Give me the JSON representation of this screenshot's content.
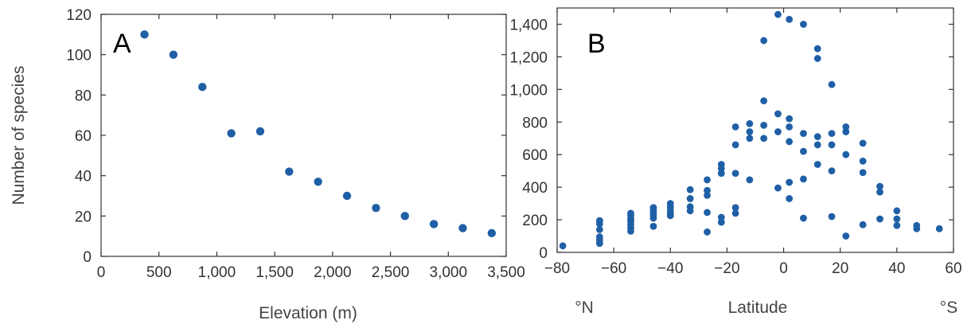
{
  "accent_color": "#1f5fa6",
  "chart_data": [
    {
      "type": "scatter",
      "panel_label": "A",
      "xlabel": "Elevation (m)",
      "ylabel": "Number of species",
      "xlim": [
        0,
        3500
      ],
      "ylim": [
        0,
        120
      ],
      "xticks": [
        0,
        500,
        1000,
        1500,
        2000,
        2500,
        3000,
        3500
      ],
      "xtick_labels": [
        "0",
        "500",
        "1,000",
        "1,500",
        "2,000",
        "2,500",
        "3,000",
        "3,500"
      ],
      "yticks": [
        0,
        20,
        40,
        60,
        80,
        100,
        120
      ],
      "ytick_labels": [
        "0",
        "20",
        "40",
        "60",
        "80",
        "100",
        "120"
      ],
      "grid": false,
      "points": [
        [
          375,
          110
        ],
        [
          625,
          100
        ],
        [
          875,
          84
        ],
        [
          1125,
          61
        ],
        [
          1375,
          62
        ],
        [
          1625,
          42
        ],
        [
          1875,
          37
        ],
        [
          2125,
          30
        ],
        [
          2375,
          24
        ],
        [
          2625,
          20
        ],
        [
          2875,
          16
        ],
        [
          3125,
          14
        ],
        [
          3375,
          11.5
        ]
      ]
    },
    {
      "type": "scatter",
      "panel_label": "B",
      "xlabel": "Latitude",
      "x_left_label": "°N",
      "x_right_label": "°S",
      "xlim": [
        -80,
        60
      ],
      "ylim": [
        0,
        1500
      ],
      "xticks": [
        -80,
        -60,
        -40,
        -20,
        0,
        20,
        40,
        60
      ],
      "xtick_labels": [
        "−80",
        "−60",
        "−40",
        "−20",
        "0",
        "20",
        "40",
        "60"
      ],
      "yticks": [
        0,
        200,
        400,
        600,
        800,
        1000,
        1200,
        1400
      ],
      "ytick_labels": [
        "0",
        "200",
        "400",
        "600",
        "800",
        "1,000",
        "1,200",
        "1,400"
      ],
      "grid": false,
      "points": [
        [
          -78,
          40
        ],
        [
          -65,
          195
        ],
        [
          -65,
          175
        ],
        [
          -65,
          140
        ],
        [
          -65,
          95
        ],
        [
          -65,
          75
        ],
        [
          -65,
          55
        ],
        [
          -54,
          240
        ],
        [
          -54,
          225
        ],
        [
          -54,
          205
        ],
        [
          -54,
          190
        ],
        [
          -54,
          170
        ],
        [
          -54,
          150
        ],
        [
          -54,
          130
        ],
        [
          -46,
          275
        ],
        [
          -46,
          260
        ],
        [
          -46,
          245
        ],
        [
          -46,
          230
        ],
        [
          -46,
          210
        ],
        [
          -46,
          160
        ],
        [
          -40,
          300
        ],
        [
          -40,
          280
        ],
        [
          -40,
          260
        ],
        [
          -40,
          240
        ],
        [
          -40,
          225
        ],
        [
          -33,
          385
        ],
        [
          -33,
          330
        ],
        [
          -33,
          280
        ],
        [
          -33,
          255
        ],
        [
          -27,
          445
        ],
        [
          -27,
          380
        ],
        [
          -27,
          350
        ],
        [
          -27,
          245
        ],
        [
          -27,
          125
        ],
        [
          -22,
          540
        ],
        [
          -22,
          515
        ],
        [
          -22,
          485
        ],
        [
          -22,
          215
        ],
        [
          -22,
          185
        ],
        [
          -17,
          770
        ],
        [
          -17,
          660
        ],
        [
          -17,
          485
        ],
        [
          -17,
          275
        ],
        [
          -17,
          240
        ],
        [
          -12,
          790
        ],
        [
          -12,
          740
        ],
        [
          -12,
          700
        ],
        [
          -12,
          445
        ],
        [
          -7,
          1300
        ],
        [
          -7,
          930
        ],
        [
          -7,
          780
        ],
        [
          -7,
          700
        ],
        [
          -2,
          1460
        ],
        [
          -2,
          850
        ],
        [
          -2,
          740
        ],
        [
          -2,
          395
        ],
        [
          2,
          1430
        ],
        [
          2,
          820
        ],
        [
          2,
          770
        ],
        [
          2,
          680
        ],
        [
          2,
          430
        ],
        [
          2,
          330
        ],
        [
          7,
          1400
        ],
        [
          7,
          730
        ],
        [
          7,
          620
        ],
        [
          7,
          450
        ],
        [
          7,
          210
        ],
        [
          12,
          1250
        ],
        [
          12,
          1190
        ],
        [
          12,
          710
        ],
        [
          12,
          660
        ],
        [
          12,
          540
        ],
        [
          17,
          1030
        ],
        [
          17,
          730
        ],
        [
          17,
          660
        ],
        [
          17,
          500
        ],
        [
          17,
          220
        ],
        [
          22,
          770
        ],
        [
          22,
          740
        ],
        [
          22,
          600
        ],
        [
          22,
          100
        ],
        [
          28,
          670
        ],
        [
          28,
          560
        ],
        [
          28,
          490
        ],
        [
          28,
          170
        ],
        [
          34,
          405
        ],
        [
          34,
          370
        ],
        [
          34,
          205
        ],
        [
          40,
          255
        ],
        [
          40,
          205
        ],
        [
          40,
          165
        ],
        [
          47,
          165
        ],
        [
          47,
          145
        ],
        [
          55,
          145
        ]
      ]
    }
  ]
}
